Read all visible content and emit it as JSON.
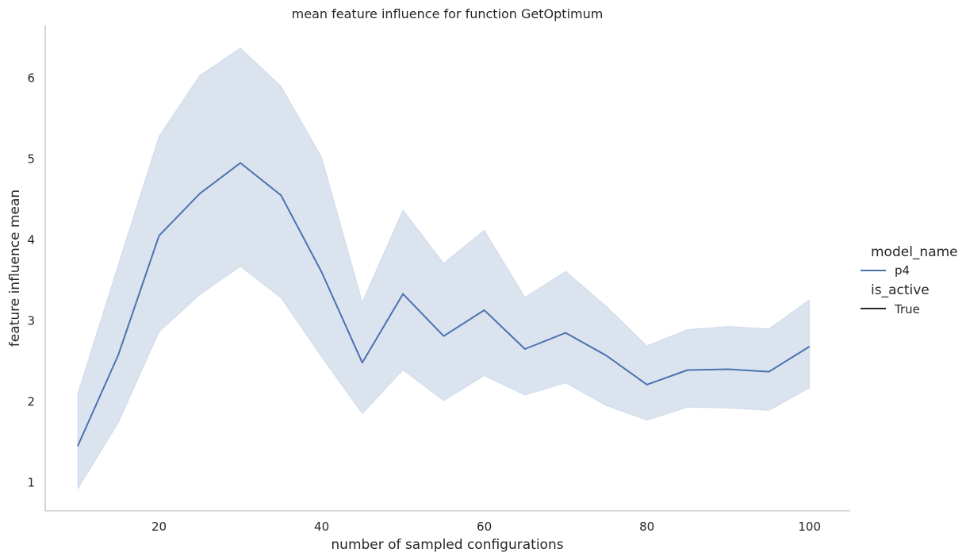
{
  "chart_data": {
    "type": "line",
    "title": "mean feature influence for function GetOptimum",
    "xlabel": "number of sampled configurations",
    "ylabel": "feature influence mean",
    "xlim": [
      6,
      105
    ],
    "ylim": [
      0.65,
      6.65
    ],
    "xticks": [
      20,
      40,
      60,
      80,
      100
    ],
    "yticks": [
      1,
      2,
      3,
      4,
      5,
      6
    ],
    "grid": false,
    "legend_position": "right",
    "x": [
      10,
      15,
      20,
      25,
      30,
      35,
      40,
      45,
      50,
      55,
      60,
      65,
      70,
      75,
      80,
      85,
      90,
      95,
      100
    ],
    "series": [
      {
        "name": "p4",
        "color": "#4c72b0",
        "values": [
          1.45,
          2.58,
          4.05,
          4.57,
          4.95,
          4.55,
          3.6,
          2.48,
          3.33,
          2.81,
          3.13,
          2.65,
          2.85,
          2.57,
          2.21,
          2.39,
          2.4,
          2.37,
          2.68
        ],
        "ci_lower": [
          0.92,
          1.74,
          2.86,
          3.32,
          3.67,
          3.28,
          2.55,
          1.85,
          2.39,
          2.01,
          2.32,
          2.08,
          2.23,
          1.95,
          1.77,
          1.93,
          1.92,
          1.89,
          2.17
        ],
        "ci_upper": [
          2.1,
          3.7,
          5.28,
          6.03,
          6.37,
          5.9,
          5.02,
          3.23,
          4.37,
          3.71,
          4.12,
          3.29,
          3.61,
          3.18,
          2.69,
          2.89,
          2.93,
          2.9,
          3.26
        ]
      }
    ],
    "legend": {
      "title_1": "model_name",
      "entry_1": "p4",
      "title_2": "is_active",
      "entry_2": "True",
      "entry_2_color": "#262626"
    }
  }
}
